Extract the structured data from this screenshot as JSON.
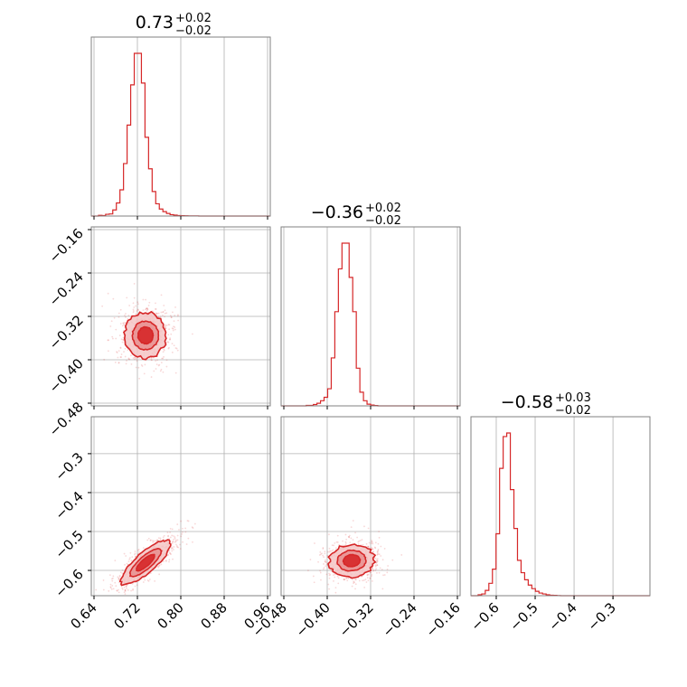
{
  "colors": {
    "accent": "#d62728",
    "fill_light": "#f4c6c6",
    "fill_mid": "#e88e8e",
    "grid": "#b0b0b0",
    "frame": "#808080"
  },
  "chart_data": {
    "type": "corner",
    "parameters": [
      {
        "title": {
          "value": "0.73",
          "upper": "+0.02",
          "lower": "−0.02"
        },
        "range": [
          0.635,
          0.965
        ],
        "ticks": [
          0.64,
          0.72,
          0.8,
          0.88,
          0.96
        ],
        "tick_labels": [
          "0.64",
          "0.72",
          "0.80",
          "0.88",
          "0.96"
        ],
        "hist": {
          "edges_start": 0.635,
          "bin_width": 0.0066,
          "counts": [
            0,
            0,
            0.4,
            0.3,
            1.0,
            1.2,
            3.5,
            7.5,
            15,
            30,
            52,
            75,
            93,
            93,
            76,
            45,
            27,
            14,
            7,
            4,
            2.5,
            1.5,
            0.8,
            0.5,
            0.3,
            0.2,
            0.15,
            0.1,
            0.08,
            0.05,
            0,
            0,
            0,
            0,
            0,
            0,
            0,
            0,
            0,
            0,
            0,
            0,
            0,
            0,
            0,
            0,
            0,
            0,
            0,
            0
          ]
        }
      },
      {
        "title": {
          "value": "−0.36",
          "upper": "+0.02",
          "lower": "−0.02"
        },
        "range": [
          -0.485,
          -0.155
        ],
        "ticks": [
          -0.48,
          -0.4,
          -0.32,
          -0.24,
          -0.16
        ],
        "tick_labels": [
          "−0.48",
          "−0.40",
          "−0.32",
          "−0.24",
          "−0.16"
        ],
        "hist": {
          "edges_start": -0.485,
          "bin_width": 0.0066,
          "counts": [
            0,
            0,
            0,
            0,
            0,
            0,
            0,
            0.3,
            0.3,
            0.8,
            1.5,
            3,
            5,
            10,
            28,
            55,
            80,
            95,
            95,
            75,
            55,
            22,
            8,
            3,
            1,
            0.5,
            0.2,
            0,
            0,
            0,
            0,
            0,
            0,
            0,
            0,
            0,
            0,
            0,
            0,
            0,
            0,
            0,
            0,
            0,
            0,
            0,
            0,
            0,
            0,
            0
          ]
        }
      },
      {
        "title": {
          "value": "−0.58",
          "upper": "+0.03",
          "lower": "−0.02"
        },
        "range": [
          -0.665,
          -0.205
        ],
        "ticks": [
          -0.6,
          -0.5,
          -0.4,
          -0.3
        ],
        "tick_labels": [
          "−0.6",
          "−0.5",
          "−0.4",
          "−0.3"
        ],
        "hist": {
          "edges_start": -0.665,
          "bin_width": 0.0092,
          "counts": [
            0,
            0,
            0.5,
            1,
            3,
            7,
            15,
            35,
            72,
            90,
            92,
            60,
            38,
            20,
            13,
            9,
            6,
            4,
            2.5,
            1.5,
            1,
            0.5,
            0.3,
            0.2,
            0.1,
            0,
            0,
            0,
            0,
            0,
            0,
            0,
            0,
            0,
            0,
            0,
            0,
            0,
            0,
            0,
            0,
            0,
            0,
            0,
            0,
            0,
            0,
            0,
            0,
            0
          ]
        }
      }
    ],
    "contours": [
      {
        "x_param": 0,
        "y_param": 1,
        "center": [
          0.735,
          -0.355
        ],
        "sigma": [
          0.02,
          0.022
        ],
        "rho": 0.0,
        "levels": [
          0.7,
          1.2,
          1.9
        ],
        "outer_jitter": 0.08
      },
      {
        "x_param": 0,
        "y_param": 2,
        "center": [
          0.735,
          -0.58
        ],
        "sigma": [
          0.024,
          0.03
        ],
        "rho": 0.82,
        "levels": [
          0.7,
          1.2,
          1.9
        ],
        "outer_jitter": 0.06
      },
      {
        "x_param": 1,
        "y_param": 2,
        "center": [
          -0.355,
          -0.575
        ],
        "sigma": [
          0.022,
          0.022
        ],
        "rho": 0.05,
        "levels": [
          0.7,
          1.2,
          1.9
        ],
        "outer_jitter": 0.08
      }
    ],
    "grid": true,
    "legend": "none"
  }
}
